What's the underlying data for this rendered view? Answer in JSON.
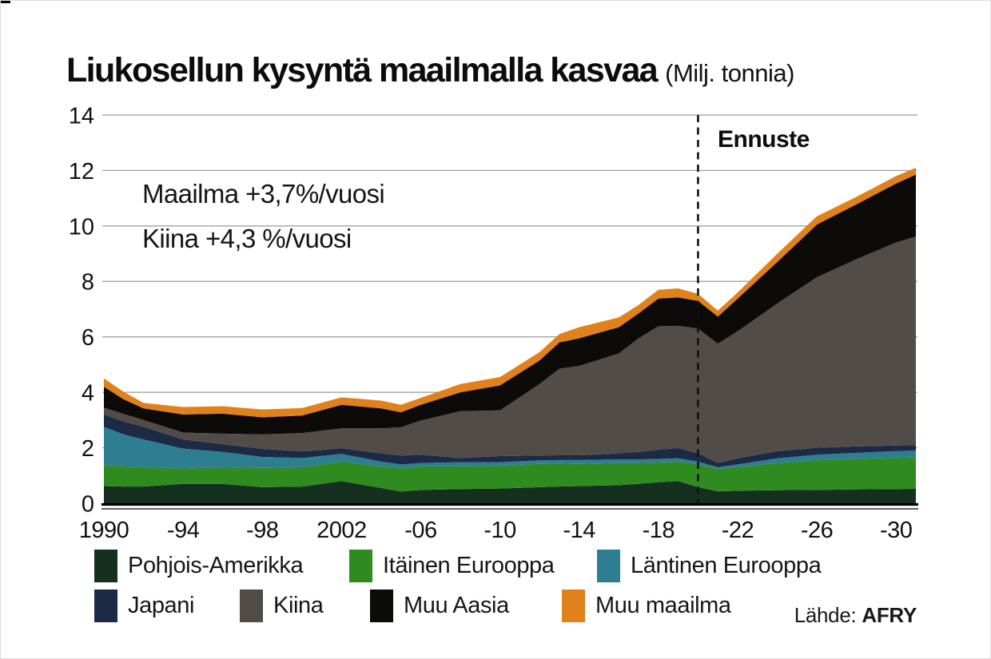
{
  "title": {
    "main": "Liukosellun kysyntä maailmalla kasvaa",
    "unit": "(Milj. tonnia)"
  },
  "annotations": {
    "world_growth": "Maailma +3,7%/vuosi",
    "china_growth": "Kiina +4,3 %/vuosi",
    "forecast_label": "Ennuste",
    "forecast_start_year": 2020
  },
  "source": {
    "label": "Lähde:",
    "name": "AFRY"
  },
  "axes": {
    "y_ticks": [
      0,
      2,
      4,
      6,
      8,
      10,
      12,
      14
    ],
    "x_ticks": [
      {
        "year": 1990,
        "label": "1990"
      },
      {
        "year": 1994,
        "label": "-94"
      },
      {
        "year": 1998,
        "label": "-98"
      },
      {
        "year": 2002,
        "label": "2002"
      },
      {
        "year": 2006,
        "label": "-06"
      },
      {
        "year": 2010,
        "label": "-10"
      },
      {
        "year": 2014,
        "label": "-14"
      },
      {
        "year": 2018,
        "label": "-18"
      },
      {
        "year": 2022,
        "label": "-22"
      },
      {
        "year": 2026,
        "label": "-26"
      },
      {
        "year": 2030,
        "label": "-30"
      }
    ]
  },
  "colors": {
    "grid": "#999999",
    "axis": "#000000",
    "forecast_line": "#111111"
  },
  "chart_data": {
    "type": "area",
    "stacked": true,
    "title": "Liukosellun kysyntä maailmalla kasvaa",
    "unit": "Milj. tonnia",
    "ylim": [
      0,
      14
    ],
    "grid": "horizontal",
    "legend_position": "bottom",
    "forecast_from": 2020,
    "x": [
      1990,
      1991,
      1992,
      1994,
      1996,
      1998,
      2000,
      2002,
      2004,
      2005,
      2006,
      2008,
      2010,
      2012,
      2013,
      2014,
      2016,
      2017,
      2018,
      2019,
      2020,
      2021,
      2022,
      2024,
      2026,
      2028,
      2030,
      2031
    ],
    "series": [
      {
        "name": "Pohjois-Amerikka",
        "color": "#15301f",
        "values": [
          0.62,
          0.6,
          0.6,
          0.7,
          0.7,
          0.58,
          0.6,
          0.8,
          0.55,
          0.42,
          0.48,
          0.51,
          0.53,
          0.58,
          0.6,
          0.62,
          0.65,
          0.7,
          0.76,
          0.8,
          0.58,
          0.43,
          0.45,
          0.47,
          0.48,
          0.5,
          0.51,
          0.52
        ]
      },
      {
        "name": "Itäinen Eurooppa",
        "color": "#2f8b20",
        "values": [
          0.76,
          0.73,
          0.7,
          0.55,
          0.6,
          0.69,
          0.7,
          0.7,
          0.78,
          0.86,
          0.85,
          0.82,
          0.82,
          0.84,
          0.83,
          0.8,
          0.8,
          0.75,
          0.71,
          0.7,
          0.82,
          0.8,
          0.85,
          0.98,
          1.07,
          1.1,
          1.13,
          1.13
        ]
      },
      {
        "name": "Läntinen Eurooppa",
        "color": "#2e7e92",
        "values": [
          1.37,
          1.15,
          1.0,
          0.72,
          0.55,
          0.4,
          0.33,
          0.28,
          0.17,
          0.12,
          0.12,
          0.15,
          0.13,
          0.13,
          0.13,
          0.14,
          0.13,
          0.13,
          0.13,
          0.12,
          0.1,
          0.07,
          0.1,
          0.17,
          0.2,
          0.22,
          0.24,
          0.25
        ]
      },
      {
        "name": "Japani",
        "color": "#1c2a45",
        "values": [
          0.45,
          0.47,
          0.46,
          0.33,
          0.28,
          0.29,
          0.24,
          0.2,
          0.3,
          0.32,
          0.3,
          0.15,
          0.22,
          0.17,
          0.17,
          0.17,
          0.22,
          0.27,
          0.33,
          0.37,
          0.3,
          0.15,
          0.22,
          0.26,
          0.25,
          0.23,
          0.2,
          0.2
        ]
      },
      {
        "name": "Kiina",
        "color": "#514c48",
        "values": [
          0.25,
          0.27,
          0.24,
          0.25,
          0.38,
          0.52,
          0.66,
          0.72,
          0.9,
          1.02,
          1.23,
          1.69,
          1.65,
          2.58,
          3.12,
          3.22,
          3.6,
          4.1,
          4.45,
          4.41,
          4.5,
          4.3,
          4.58,
          5.32,
          6.15,
          6.75,
          7.32,
          7.52
        ]
      },
      {
        "name": "Muu Aasia",
        "color": "#0d0b0a",
        "values": [
          0.75,
          0.53,
          0.42,
          0.65,
          0.72,
          0.62,
          0.63,
          0.85,
          0.72,
          0.54,
          0.57,
          0.68,
          0.9,
          0.85,
          0.95,
          1.0,
          0.95,
          0.9,
          1.0,
          1.02,
          1.0,
          0.98,
          1.18,
          1.5,
          1.9,
          1.98,
          2.13,
          2.23
        ]
      },
      {
        "name": "Muu maailma",
        "color": "#e0811c",
        "values": [
          0.3,
          0.27,
          0.2,
          0.27,
          0.27,
          0.28,
          0.27,
          0.27,
          0.28,
          0.27,
          0.25,
          0.3,
          0.3,
          0.3,
          0.3,
          0.4,
          0.35,
          0.3,
          0.32,
          0.33,
          0.25,
          0.22,
          0.22,
          0.3,
          0.3,
          0.27,
          0.27,
          0.25
        ]
      }
    ]
  }
}
